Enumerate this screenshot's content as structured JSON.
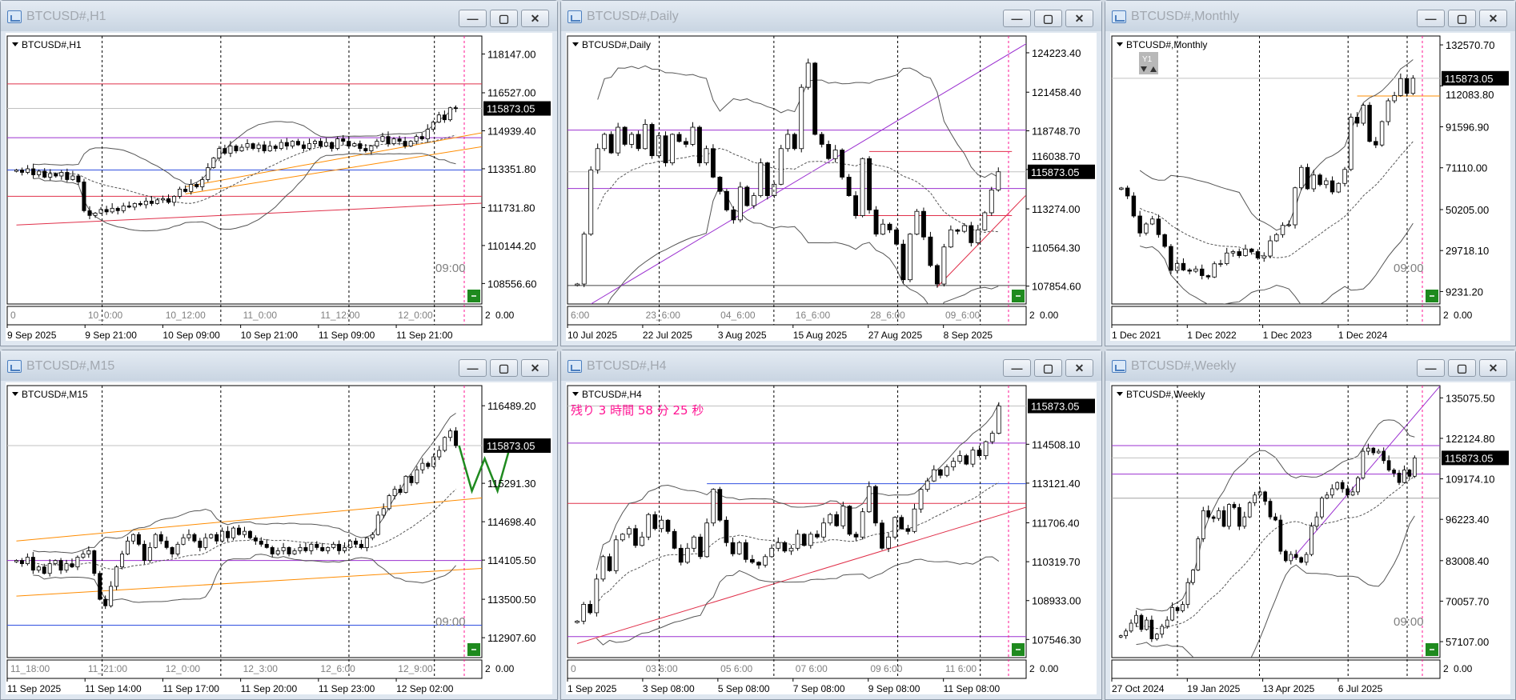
{
  "colors": {
    "bull": "#ffffff",
    "bear": "#000000",
    "current_line": "#c0c0c0",
    "period_sep": "#ff1493",
    "band": "#555555",
    "countdown": "#ff1493",
    "forecast": "#1f8a1f",
    "nav_button": "#1e8a1e"
  },
  "windows": [
    {
      "title": "BTCUSD#,H1",
      "label": "BTCUSD#,H1",
      "current_price": "115873.05",
      "ylim": [
        107700,
        118900
      ],
      "price_labels": [
        "118147.00",
        "116527.00",
        "114939.40",
        "113351.80",
        "111731.80",
        "110144.20",
        "108556.60"
      ],
      "sub_labels": [
        "0",
        "10_0:00",
        "10_12:00",
        "11_0:00",
        "11_12:00",
        "12_0:00"
      ],
      "date_labels": [
        "9 Sep 2025",
        "9 Sep 21:00",
        "10 Sep 09:00",
        "10 Sep 21:00",
        "11 Sep 09:00",
        "11 Sep 21:00"
      ],
      "sub_scale": [
        "2",
        "0.00"
      ],
      "time_marker": "09:00",
      "hlines": [
        {
          "price": 116900,
          "color": "#e0304a"
        },
        {
          "price": 114650,
          "color": "#9b30d0"
        },
        {
          "price": 113300,
          "color": "#3050e0"
        },
        {
          "price": 112200,
          "color": "#e0304a"
        }
      ],
      "trendlines": [
        {
          "from": [
            0,
            111000
          ],
          "to": [
            86,
            111950
          ],
          "color": "#e0304a"
        },
        {
          "from": [
            30,
            112600
          ],
          "to": [
            86,
            115000
          ],
          "color": "#ff8c00"
        },
        {
          "from": [
            30,
            112300
          ],
          "to": [
            86,
            114400
          ],
          "color": "#ff8c00"
        }
      ],
      "closes": [
        113300,
        113200,
        113350,
        113100,
        113250,
        113000,
        113150,
        113050,
        113200,
        112900,
        113050,
        112800,
        111600,
        111400,
        111500,
        111650,
        111550,
        111700,
        111600,
        111800,
        111750,
        111900,
        111850,
        112000,
        111900,
        112050,
        112100,
        111950,
        112200,
        112500,
        112400,
        112700,
        112600,
        112900,
        113400,
        113800,
        114200,
        114000,
        114300,
        114100,
        114250,
        114400,
        114200,
        114350,
        114100,
        114300,
        114200,
        114450,
        114300,
        114500,
        114350,
        114200,
        114400,
        114500,
        114300,
        114450,
        114200,
        114600,
        114500,
        114300,
        114400,
        114200,
        114100,
        114300,
        114500,
        114700,
        114400,
        114600,
        114500,
        114300,
        114500,
        114700,
        114600,
        115000,
        115300,
        115600,
        115400,
        115900,
        115873
      ]
    },
    {
      "title": "BTCUSD#,Daily",
      "label": "BTCUSD#,Daily",
      "current_price": "115873.05",
      "ylim": [
        106600,
        125400
      ],
      "price_labels": [
        "124223.40",
        "121458.40",
        "118748.70",
        "116038.70",
        "113274.00",
        "110564.30",
        "107854.60"
      ],
      "sub_labels": [
        "6:00",
        "23_6:00",
        "04_6:00",
        "16_6:00",
        "28_6:00",
        "09_6:00"
      ],
      "date_labels": [
        "10 Jul 2025",
        "22 Jul 2025",
        "3 Aug 2025",
        "15 Aug 2025",
        "27 Aug 2025",
        "8 Sep 2025"
      ],
      "sub_scale": [
        "2",
        "0.00"
      ],
      "time_marker": "",
      "hlines": [
        {
          "price": 118800,
          "color": "#9b30d0"
        },
        {
          "price": 114700,
          "color": "#9b30d0"
        },
        {
          "price": 107900,
          "color": "#444444"
        }
      ],
      "trendlines": [
        {
          "from": [
            2,
            106600
          ],
          "to": [
            68,
            125400
          ],
          "color": "#9b30d0"
        },
        {
          "from": [
            43,
            117300
          ],
          "to": [
            64,
            117300
          ],
          "color": "#e0304a"
        },
        {
          "from": [
            41,
            112800
          ],
          "to": [
            64,
            112800
          ],
          "color": "#e0304a"
        },
        {
          "from": [
            53,
            107800
          ],
          "to": [
            66,
            114200
          ],
          "color": "#e0304a"
        }
      ],
      "closes": [
        108000,
        111500,
        116000,
        117500,
        118500,
        117200,
        119000,
        117800,
        118500,
        117500,
        119200,
        117000,
        118400,
        116500,
        118500,
        118000,
        117800,
        119000,
        116500,
        117500,
        115500,
        114500,
        113200,
        112500,
        114800,
        113500,
        114200,
        116500,
        114200,
        115000,
        117500,
        118500,
        117500,
        121800,
        123500,
        118500,
        117800,
        116800,
        117400,
        115500,
        114200,
        112800,
        116800,
        113200,
        111500,
        112200,
        111800,
        110800,
        108300,
        111500,
        113100,
        111300,
        109300,
        108000,
        110600,
        111800,
        111700,
        112100,
        110900,
        111800,
        113000,
        114600,
        115873
      ]
    },
    {
      "title": "BTCUSD#,Monthly",
      "label": "BTCUSD#,Monthly",
      "current_price": "115873.05",
      "ylim": [
        3000,
        137000
      ],
      "price_labels": [
        "132570.70",
        "112083.80",
        "91596.90",
        "71110.00",
        "50205.00",
        "29718.10",
        "9231.20"
      ],
      "sub_labels": [],
      "date_labels": [
        "1 Dec 2021",
        "1 Dec 2022",
        "1 Dec 2023",
        "1 Dec 2024"
      ],
      "sub_scale": [
        "2",
        "0.00"
      ],
      "time_marker": "09:00",
      "widget": "Y1",
      "hlines": [],
      "trendlines": [
        {
          "from": [
            38,
            107000
          ],
          "to": [
            55,
            107000
          ],
          "color": "#ff8c00"
        }
      ],
      "closes": [
        61000,
        57000,
        47000,
        38500,
        43000,
        45500,
        37700,
        31800,
        19800,
        23300,
        20000,
        19400,
        20500,
        17200,
        16500,
        23100,
        23200,
        28500,
        29200,
        27200,
        30500,
        29200,
        26000,
        27000,
        34600,
        37700,
        42300,
        42600,
        61100,
        71300,
        60600,
        67500,
        62700,
        64600,
        59000,
        63300,
        70300,
        96400,
        93400,
        102400,
        84300,
        82500,
        94200,
        104600,
        107200,
        115700,
        108300,
        115873
      ]
    },
    {
      "title": "BTCUSD#,M15",
      "label": "BTCUSD#,M15",
      "current_price": "115873.05",
      "ylim": [
        112600,
        116800
      ],
      "price_labels": [
        "116489.20",
        "115291.30",
        "114698.40",
        "114105.50",
        "113500.50",
        "112907.60"
      ],
      "sub_labels": [
        "11_18:00",
        "11_21:00",
        "12_0:00",
        "12_3:00",
        "12_6:00",
        "12_9:00"
      ],
      "date_labels": [
        "11 Sep 2025",
        "11 Sep 14:00",
        "11 Sep 17:00",
        "11 Sep 20:00",
        "11 Sep 23:00",
        "12 Sep 02:00"
      ],
      "sub_scale": [
        "2",
        "0.00"
      ],
      "time_marker": "09:00",
      "hlines": [
        {
          "price": 114100,
          "color": "#9b30d0"
        },
        {
          "price": 113100,
          "color": "#3050e0"
        }
      ],
      "trendlines": [
        {
          "from": [
            0,
            114400
          ],
          "to": [
            88,
            115100
          ],
          "color": "#ff8c00"
        },
        {
          "from": [
            0,
            113550
          ],
          "to": [
            88,
            114000
          ],
          "color": "#ff8c00"
        }
      ],
      "forecast": [
        [
          0,
          0
        ],
        [
          1,
          -700
        ],
        [
          2,
          -200
        ],
        [
          3,
          -700
        ],
        [
          4,
          0
        ]
      ],
      "closes": [
        114100,
        114050,
        114150,
        113950,
        114000,
        113900,
        114050,
        114100,
        113950,
        114050,
        114000,
        114150,
        114200,
        114250,
        113900,
        113500,
        113400,
        113700,
        114000,
        114200,
        114400,
        114500,
        114350,
        114100,
        114300,
        114500,
        114400,
        114300,
        114200,
        114350,
        114450,
        114500,
        114400,
        114300,
        114450,
        114500,
        114400,
        114550,
        114450,
        114600,
        114500,
        114550,
        114450,
        114400,
        114350,
        114300,
        114200,
        114250,
        114300,
        114200,
        114250,
        114300,
        114250,
        114350,
        114300,
        114250,
        114300,
        114350,
        114250,
        114300,
        114400,
        114350,
        114300,
        114450,
        114500,
        114800,
        114900,
        115100,
        115200,
        115150,
        115400,
        115300,
        115500,
        115600,
        115550,
        115700,
        115800,
        116000,
        116100,
        115873
      ]
    },
    {
      "title": "BTCUSD#,H4",
      "label": "BTCUSD#,H4",
      "current_price": "115873.05",
      "ylim": [
        106900,
        116600
      ],
      "countdown": "残り 3 時間 58 分 25 秒",
      "price_labels": [
        "114508.10",
        "113121.40",
        "111706.40",
        "110319.70",
        "108933.00",
        "107546.30"
      ],
      "sub_labels": [
        "0",
        "03 6:00",
        "05 6:00",
        "07 6:00",
        "09 6:00",
        "11 6:00"
      ],
      "date_labels": [
        "1 Sep 2025",
        "3 Sep 08:00",
        "5 Sep 08:00",
        "7 Sep 08:00",
        "9 Sep 08:00",
        "11 Sep 08:00"
      ],
      "sub_scale": [
        "2",
        "0.00"
      ],
      "time_marker": "",
      "hlines": [
        {
          "price": 114550,
          "color": "#9b30d0"
        },
        {
          "price": 112400,
          "color": "#e0304a"
        },
        {
          "price": 107650,
          "color": "#9b30d0"
        }
      ],
      "trendlines": [
        {
          "from": [
            0,
            107400
          ],
          "to": [
            74,
            112600
          ],
          "color": "#e0304a"
        },
        {
          "from": [
            20,
            113100
          ],
          "to": [
            74,
            113100
          ],
          "color": "#3050e0"
        }
      ],
      "closes": [
        108200,
        108800,
        108500,
        109700,
        110500,
        110000,
        111100,
        111300,
        111500,
        110900,
        111200,
        112000,
        111500,
        111800,
        111400,
        110800,
        110300,
        110800,
        111200,
        110500,
        111700,
        112900,
        111800,
        111000,
        110600,
        111000,
        110400,
        110300,
        110200,
        110500,
        110800,
        111000,
        110700,
        110800,
        111300,
        110900,
        111300,
        111200,
        111700,
        112000,
        111600,
        112300,
        111300,
        111200,
        112100,
        113000,
        111700,
        110800,
        111200,
        111900,
        111500,
        111400,
        112200,
        112900,
        113200,
        113600,
        113400,
        113700,
        113900,
        114100,
        113800,
        114300,
        114100,
        114600,
        114900,
        115873
      ]
    },
    {
      "title": "BTCUSD#,Weekly",
      "label": "BTCUSD#,Weekly",
      "current_price": "115873.05",
      "ylim": [
        52000,
        139000
      ],
      "price_labels": [
        "135075.50",
        "122124.80",
        "109174.10",
        "96223.40",
        "83008.40",
        "70057.70",
        "57107.00"
      ],
      "sub_labels": [],
      "date_labels": [
        "27 Oct 2024",
        "19 Jan 2025",
        "13 Apr 2025",
        "6 Jul 2025"
      ],
      "sub_scale": [
        "2",
        "0.00"
      ],
      "time_marker": "09:00",
      "hlines": [
        {
          "price": 119800,
          "color": "#9b30d0"
        },
        {
          "price": 110700,
          "color": "#9b30d0"
        },
        {
          "price": 103000,
          "color": "#a0a0a0"
        }
      ],
      "trendlines": [
        {
          "from": [
            33,
            83000
          ],
          "to": [
            62,
            139000
          ],
          "color": "#9b30d0"
        }
      ],
      "closes": [
        59000,
        60500,
        63000,
        65500,
        61000,
        64000,
        58000,
        59500,
        62000,
        64000,
        68000,
        67000,
        69000,
        76000,
        80000,
        90000,
        99000,
        97000,
        96500,
        99000,
        94000,
        101000,
        100000,
        94000,
        97000,
        101500,
        104000,
        105000,
        102000,
        97000,
        96000,
        86000,
        83000,
        85000,
        84000,
        82500,
        85000,
        94000,
        97000,
        103000,
        104000,
        106000,
        108000,
        106000,
        104000,
        105000,
        109500,
        118000,
        119000,
        117500,
        118000,
        115000,
        112000,
        111000,
        108000,
        112000,
        110000,
        115873
      ]
    }
  ],
  "window_buttons": {
    "minimize": "—",
    "maximize": "▢",
    "close": "✕"
  }
}
